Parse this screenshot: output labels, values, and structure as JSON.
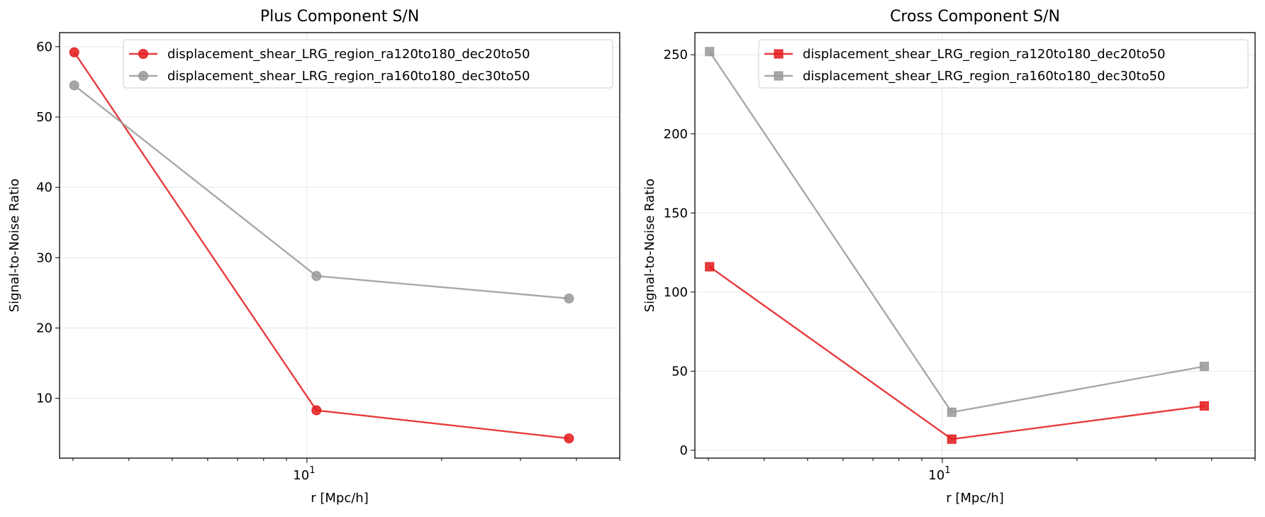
{
  "chart_data": [
    {
      "type": "line",
      "title": "Plus Component S/N",
      "xlabel": "r [Mpc/h]",
      "ylabel": "Signal-to-Noise Ratio",
      "xscale": "log",
      "xlim": [
        2.8,
        50
      ],
      "ylim": [
        1.5,
        62
      ],
      "x_tick_labels": [
        {
          "value": 10,
          "base": "10",
          "exp": "1"
        }
      ],
      "y_ticks": [
        10,
        20,
        30,
        40,
        50,
        60
      ],
      "grid": true,
      "legend_position": "top-right",
      "marker": "circle",
      "series": [
        {
          "name": "displacement_shear_LRG_region_ra120to180_dec20to50",
          "color": "#e41a1c",
          "x": [
            3.02,
            10.5,
            38.5
          ],
          "y": [
            59.2,
            8.3,
            4.3
          ]
        },
        {
          "name": "displacement_shear_LRG_region_ra160to180_dec30to50",
          "color": "#999999",
          "x": [
            3.02,
            10.5,
            38.5
          ],
          "y": [
            54.5,
            27.4,
            24.2
          ]
        }
      ]
    },
    {
      "type": "line",
      "title": "Cross Component S/N",
      "xlabel": "r [Mpc/h]",
      "ylabel": "Signal-to-Noise Ratio",
      "xscale": "log",
      "xlim": [
        2.8,
        50
      ],
      "ylim": [
        -5,
        264
      ],
      "x_tick_labels": [
        {
          "value": 10,
          "base": "10",
          "exp": "1"
        }
      ],
      "y_ticks": [
        0,
        50,
        100,
        150,
        200,
        250
      ],
      "grid": true,
      "legend_position": "top-right",
      "marker": "square",
      "series": [
        {
          "name": "displacement_shear_LRG_region_ra120to180_dec20to50",
          "color": "#e41a1c",
          "x": [
            3.02,
            10.5,
            38.5
          ],
          "y": [
            116,
            7,
            28
          ]
        },
        {
          "name": "displacement_shear_LRG_region_ra160to180_dec30to50",
          "color": "#999999",
          "x": [
            3.02,
            10.5,
            38.5
          ],
          "y": [
            252,
            24,
            53
          ]
        }
      ]
    }
  ]
}
